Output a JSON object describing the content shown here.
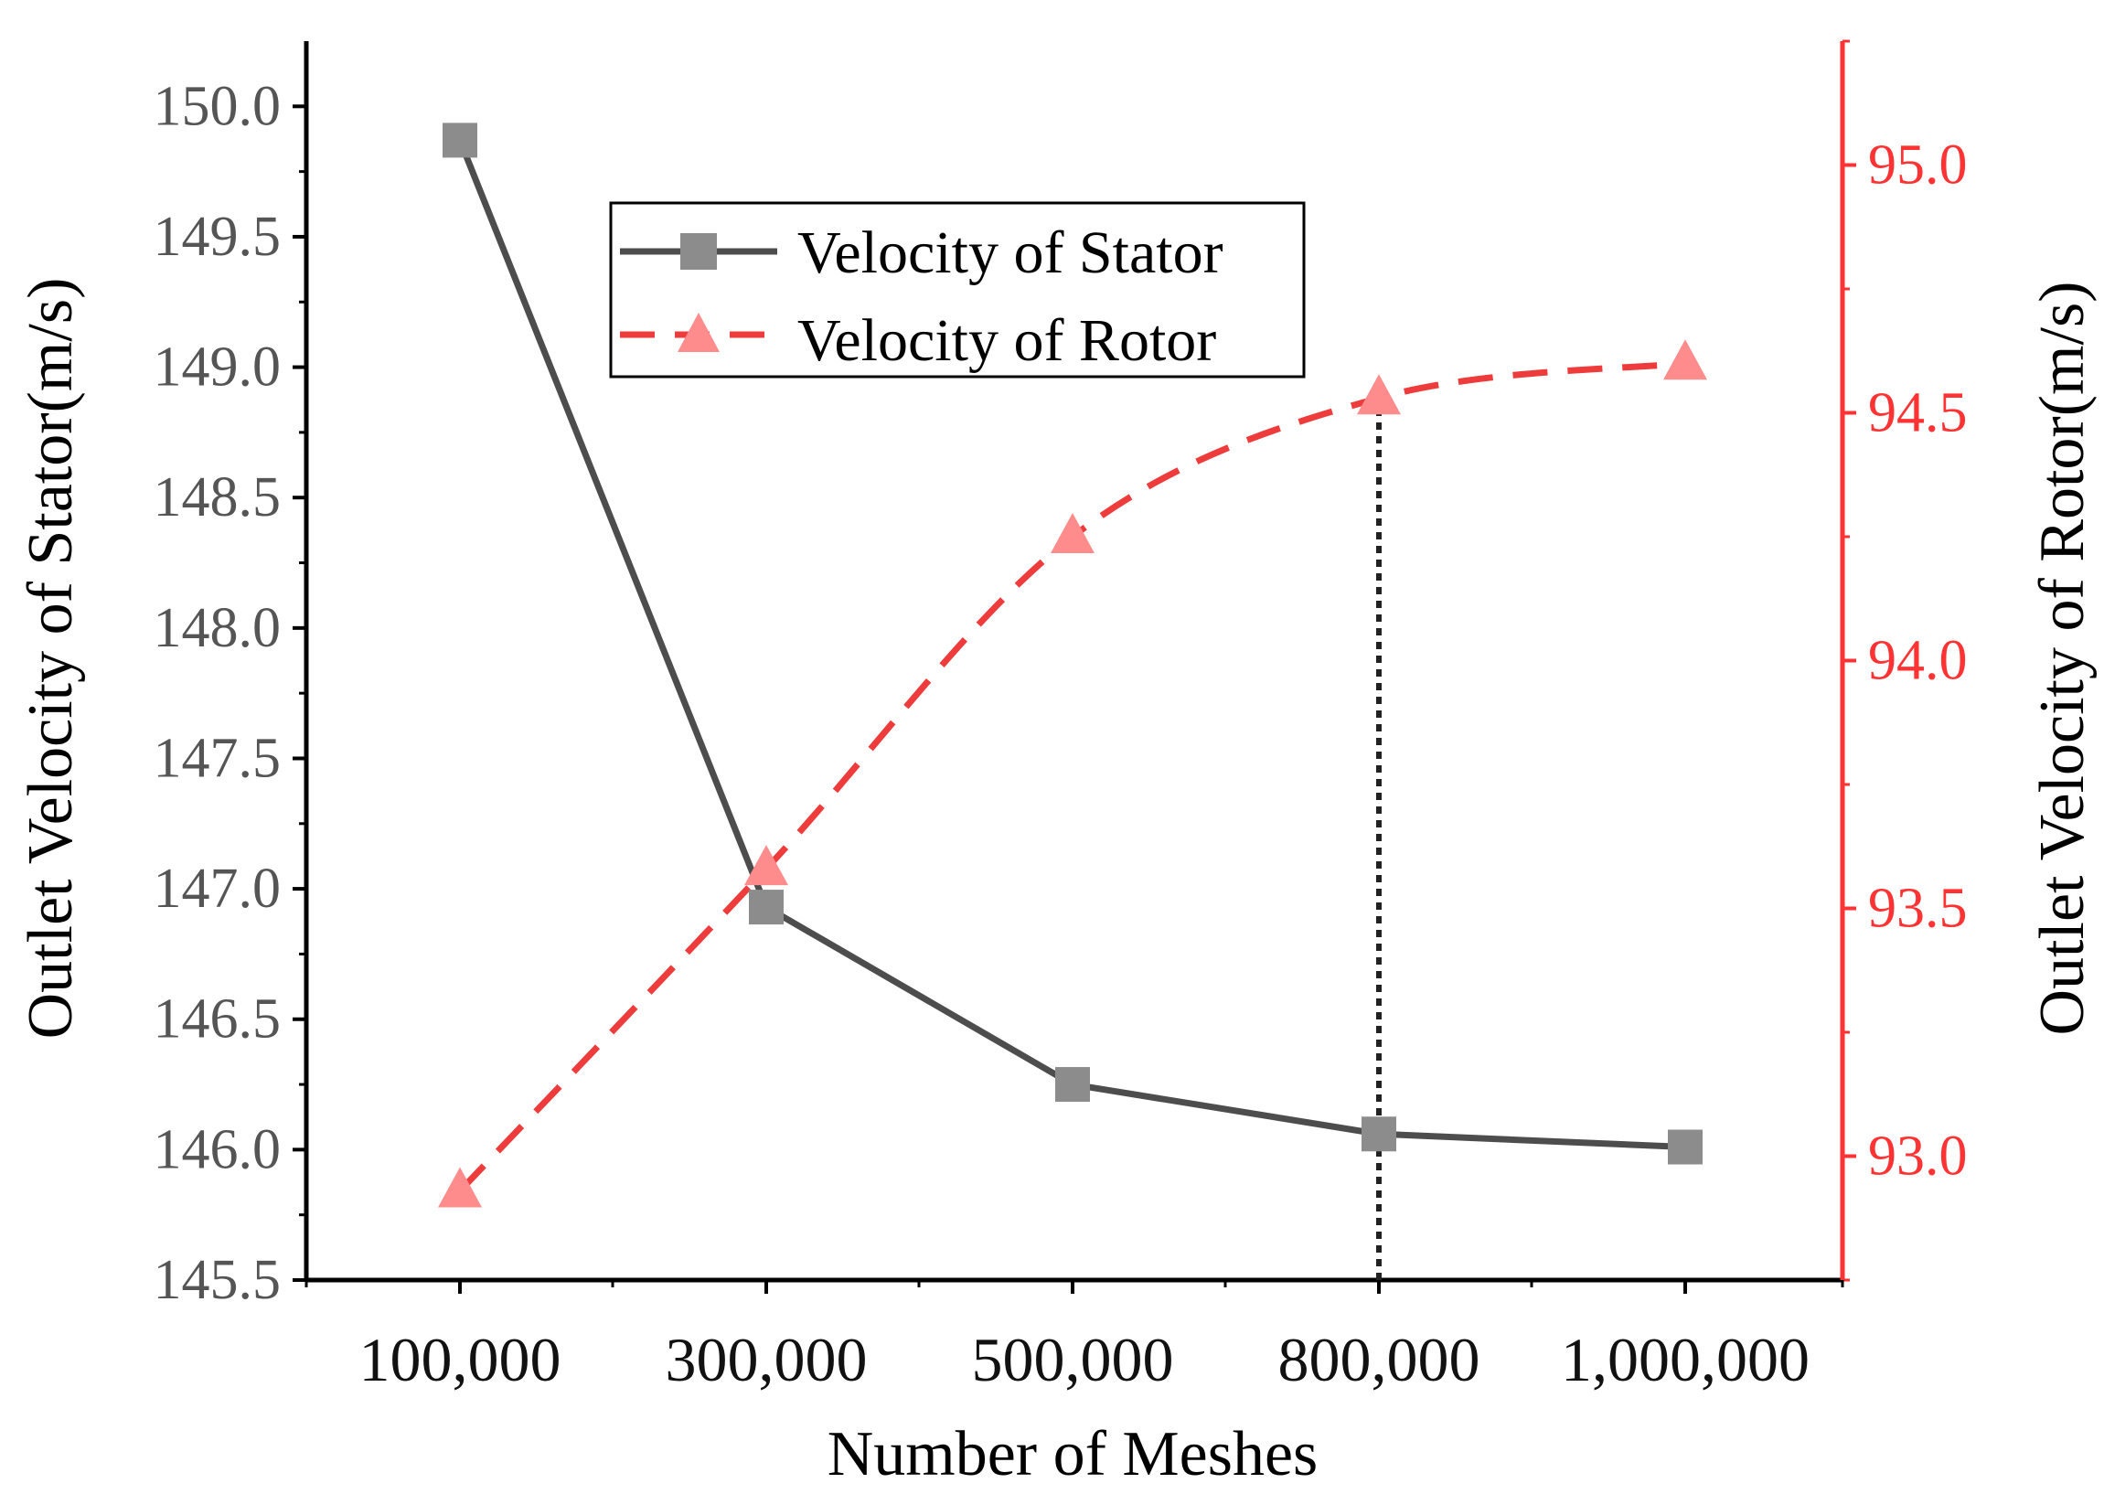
{
  "chart_data": {
    "type": "line",
    "categories": [
      "100,000",
      "300,000",
      "500,000",
      "800,000",
      "1,000,000"
    ],
    "xlabel": "Number of Meshes",
    "series": [
      {
        "name": "Velocity of Stator",
        "axis": "left",
        "marker": "square",
        "line_style": "solid",
        "color": "#4d4d4d",
        "marker_color": "#8c8c8c",
        "values": [
          149.87,
          146.93,
          146.25,
          146.06,
          146.01
        ]
      },
      {
        "name": "Velocity of Rotor",
        "axis": "right",
        "marker": "triangle",
        "line_style": "dashed",
        "color": "#ee3b3b",
        "marker_color": "#ff8c8c",
        "values": [
          92.93,
          93.58,
          94.25,
          94.53,
          94.6
        ]
      }
    ],
    "left_axis": {
      "label": "Outlet Velocity of Stator(m/s)",
      "ylim": [
        145.5,
        150.25
      ],
      "ticks": [
        145.5,
        146.0,
        146.5,
        147.0,
        147.5,
        148.0,
        148.5,
        149.0,
        149.5,
        150.0
      ],
      "tick_labels": [
        "145.5",
        "146.0",
        "146.5",
        "147.0",
        "147.5",
        "148.0",
        "148.5",
        "149.0",
        "149.5",
        "150.0"
      ],
      "color": "#000000",
      "tick_label_color": "#555555"
    },
    "right_axis": {
      "label": "Outlet Velocity of Rotor(m/s)",
      "ylim": [
        92.75,
        95.25
      ],
      "ticks": [
        93.0,
        93.5,
        94.0,
        94.5,
        95.0
      ],
      "tick_labels": [
        "93.0",
        "93.5",
        "94.0",
        "94.5",
        "95.0"
      ],
      "color": "#ff3333"
    },
    "reference_line": {
      "category": "800,000",
      "style": "dotted",
      "color": "#222222"
    },
    "legend": {
      "position": "top-center",
      "entries": [
        "Velocity of Stator",
        "Velocity of Rotor"
      ]
    },
    "grid": false
  }
}
